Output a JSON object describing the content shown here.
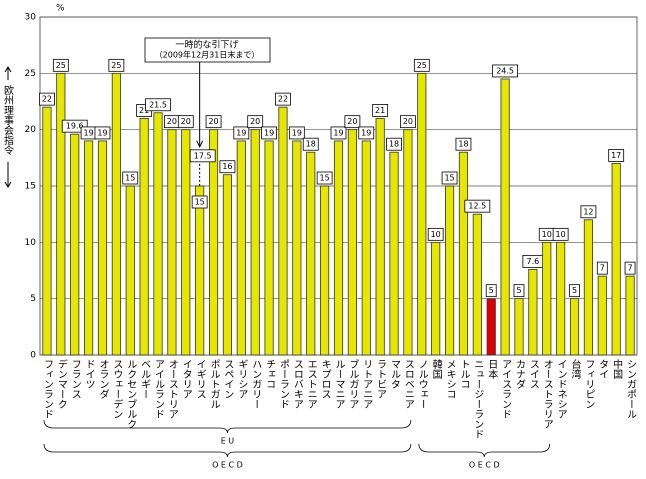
{
  "chart_data": {
    "type": "bar",
    "y_unit": "%",
    "y_axis_label": "欧州理事会指令",
    "categories": [
      "フィンランド",
      "デンマーク",
      "フランス",
      "ドイツ",
      "オランダ",
      "スウェーデン",
      "ルクセンブルク",
      "ベルギー",
      "アイルランド",
      "オーストリア",
      "イタリア",
      "イギリス",
      "ポルトガル",
      "スペイン",
      "ギリシア",
      "ハンガリー",
      "チェコ",
      "ポーランド",
      "スロバキア",
      "エストニア",
      "キプロス",
      "ルーマニア",
      "ブルガリア",
      "リトアニア",
      "ラトビア",
      "マルタ",
      "スロベニア",
      "ノルウェー",
      "韓国",
      "メキシコ",
      "トルコ",
      "ニュージーランド",
      "日本",
      "アイスランド",
      "カナダ",
      "スイス",
      "オーストラリア",
      "インドネシア",
      "台湾",
      "フィリピン",
      "タイ",
      "中国",
      "シンガポール"
    ],
    "values": [
      22,
      25,
      19.6,
      19,
      19,
      25,
      15,
      21,
      21.5,
      20,
      20,
      15,
      20,
      16,
      19,
      20,
      19,
      22,
      19,
      18,
      15,
      19,
      20,
      19,
      21,
      18,
      20,
      25,
      10,
      15,
      18,
      12.5,
      5,
      24.5,
      5,
      7.6,
      10,
      10,
      5,
      12,
      7,
      17,
      7
    ],
    "color": "#e6e600",
    "highlight": {
      "index": 32,
      "color": "#dd0000"
    },
    "annotation": {
      "lines": [
        "一時的な引下げ",
        "（2009年12月31日末まで）"
      ],
      "category_index": 11,
      "value": 17.5
    },
    "groups": [
      {
        "label": "E U",
        "from": 0,
        "to": 26,
        "row": 0
      },
      {
        "label": "O E C D",
        "from": 0,
        "to": 26,
        "row": 1
      },
      {
        "label": "O E C D",
        "from": 27,
        "to": 36,
        "row": 1
      }
    ],
    "ylim": [
      0,
      30
    ],
    "yticks": [
      0,
      5,
      10,
      15,
      20,
      25,
      30
    ],
    "grid": true
  }
}
